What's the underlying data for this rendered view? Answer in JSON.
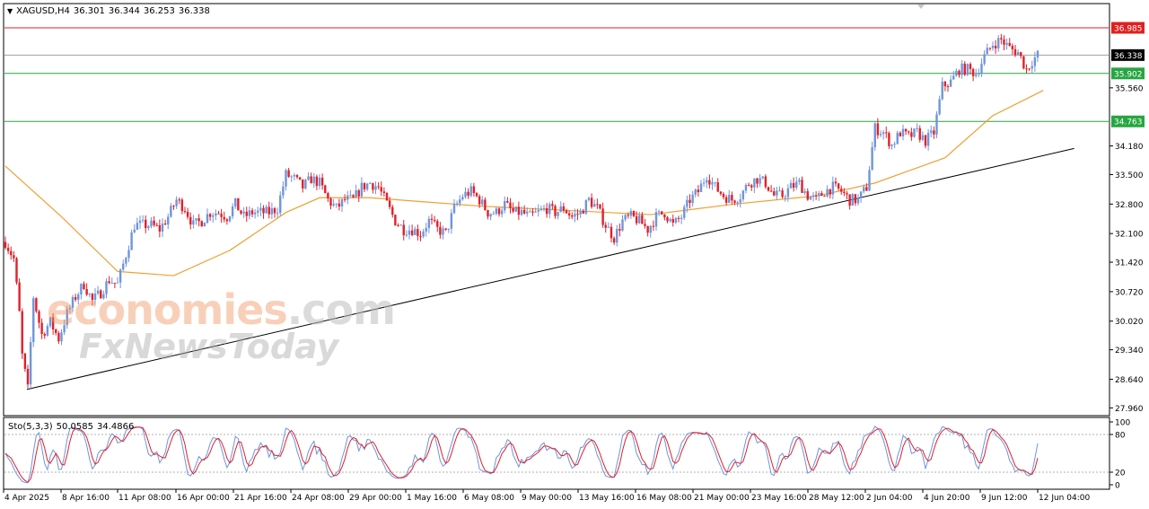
{
  "header": {
    "symbol": "XAGUSD,H4",
    "open": "36.301",
    "high": "36.344",
    "low": "36.253",
    "close": "36.338"
  },
  "watermark": {
    "part1": "economies",
    "part2": ".com",
    "part3": "FxNewsToday"
  },
  "colors": {
    "bull": "#6f95db",
    "bear": "#e0202a",
    "ma": "#f0a030",
    "trendline": "#000000",
    "resistance": "#e02020",
    "support": "#26a640",
    "sto_main": "#6f95db",
    "sto_signal": "#e0202a"
  },
  "chart_data": {
    "type": "candlestick",
    "title": "XAGUSD,H4",
    "y_ticks": [
      "35.560",
      "34.180",
      "33.500",
      "32.800",
      "32.100",
      "31.420",
      "30.720",
      "30.020",
      "29.340",
      "28.640",
      "27.960"
    ],
    "ylim": [
      27.96,
      37.2
    ],
    "x_ticks": [
      "4 Apr 2025",
      "8 Apr 16:00",
      "11 Apr 08:00",
      "16 Apr 00:00",
      "21 Apr 16:00",
      "24 Apr 08:00",
      "29 Apr 00:00",
      "1 May 16:00",
      "6 May 08:00",
      "9 May 00:00",
      "13 May 16:00",
      "16 May 08:00",
      "21 May 00:00",
      "23 May 16:00",
      "28 May 12:00",
      "2 Jun 04:00",
      "4 Jun 20:00",
      "9 Jun 12:00",
      "12 Jun 04:00"
    ],
    "levels": [
      {
        "name": "resistance",
        "value": 36.985,
        "label": "36.985"
      },
      {
        "name": "current-price",
        "value": 36.338,
        "label": "36.338"
      },
      {
        "name": "support-1",
        "value": 35.902,
        "label": "35.902"
      },
      {
        "name": "support-2",
        "value": 34.763,
        "label": "34.763"
      }
    ],
    "trendline": {
      "from": [
        0,
        28.4
      ],
      "to": [
        381,
        34.12
      ]
    },
    "price_path": [
      [
        0,
        31.9
      ],
      [
        3,
        31.5
      ],
      [
        5,
        30.2
      ],
      [
        6,
        29.2
      ],
      [
        8,
        28.4
      ],
      [
        10,
        30.6
      ],
      [
        13,
        29.7
      ],
      [
        16,
        30.0
      ],
      [
        19,
        29.6
      ],
      [
        22,
        30.2
      ],
      [
        25,
        30.6
      ],
      [
        28,
        30.9
      ],
      [
        31,
        30.5
      ],
      [
        34,
        30.7
      ],
      [
        37,
        31.0
      ],
      [
        40,
        30.9
      ],
      [
        43,
        31.6
      ],
      [
        46,
        32.3
      ],
      [
        49,
        32.3
      ],
      [
        52,
        32.3
      ],
      [
        55,
        32.2
      ],
      [
        58,
        32.5
      ],
      [
        61,
        32.9
      ],
      [
        64,
        32.7
      ],
      [
        67,
        32.3
      ],
      [
        70,
        32.4
      ],
      [
        73,
        32.6
      ],
      [
        76,
        32.6
      ],
      [
        79,
        32.5
      ],
      [
        82,
        32.8
      ],
      [
        85,
        32.5
      ],
      [
        88,
        32.6
      ],
      [
        91,
        32.6
      ],
      [
        94,
        32.6
      ],
      [
        97,
        32.7
      ],
      [
        100,
        33.5
      ],
      [
        103,
        33.4
      ],
      [
        106,
        33.2
      ],
      [
        109,
        33.4
      ],
      [
        112,
        33.3
      ],
      [
        115,
        32.9
      ],
      [
        118,
        32.7
      ],
      [
        121,
        32.9
      ],
      [
        124,
        32.9
      ],
      [
        127,
        33.2
      ],
      [
        130,
        33.3
      ],
      [
        133,
        33.2
      ],
      [
        136,
        32.8
      ],
      [
        139,
        32.4
      ],
      [
        142,
        32.2
      ],
      [
        145,
        32.2
      ],
      [
        148,
        32.1
      ],
      [
        151,
        32.4
      ],
      [
        154,
        32.2
      ],
      [
        157,
        32.1
      ],
      [
        160,
        32.7
      ],
      [
        163,
        33.0
      ],
      [
        166,
        33.1
      ],
      [
        169,
        32.9
      ],
      [
        172,
        32.6
      ],
      [
        175,
        32.6
      ],
      [
        178,
        32.8
      ],
      [
        181,
        32.6
      ],
      [
        184,
        32.6
      ],
      [
        187,
        32.5
      ],
      [
        190,
        32.6
      ],
      [
        193,
        32.7
      ],
      [
        196,
        32.6
      ],
      [
        199,
        32.7
      ],
      [
        202,
        32.5
      ],
      [
        205,
        32.6
      ],
      [
        208,
        32.9
      ],
      [
        211,
        32.7
      ],
      [
        214,
        32.3
      ],
      [
        217,
        32.0
      ],
      [
        220,
        32.4
      ],
      [
        223,
        32.5
      ],
      [
        226,
        32.4
      ],
      [
        229,
        32.2
      ],
      [
        232,
        32.5
      ],
      [
        235,
        32.6
      ],
      [
        238,
        32.3
      ],
      [
        241,
        32.5
      ],
      [
        244,
        32.9
      ],
      [
        247,
        33.1
      ],
      [
        250,
        33.5
      ],
      [
        253,
        33.2
      ],
      [
        256,
        33.0
      ],
      [
        259,
        32.9
      ],
      [
        262,
        33.0
      ],
      [
        265,
        33.3
      ],
      [
        268,
        33.4
      ],
      [
        271,
        33.3
      ],
      [
        274,
        33.0
      ],
      [
        277,
        33.0
      ],
      [
        280,
        33.2
      ],
      [
        283,
        33.3
      ],
      [
        286,
        33.0
      ],
      [
        289,
        32.9
      ],
      [
        292,
        33.1
      ],
      [
        295,
        33.2
      ],
      [
        298,
        33.1
      ],
      [
        301,
        32.9
      ],
      [
        304,
        32.9
      ],
      [
        307,
        33.2
      ],
      [
        310,
        34.6
      ],
      [
        313,
        34.5
      ],
      [
        316,
        34.2
      ],
      [
        319,
        34.5
      ],
      [
        322,
        34.4
      ],
      [
        325,
        34.5
      ],
      [
        328,
        34.3
      ],
      [
        331,
        34.5
      ],
      [
        334,
        35.6
      ],
      [
        337,
        35.7
      ],
      [
        340,
        36.0
      ],
      [
        343,
        36.0
      ],
      [
        346,
        35.9
      ],
      [
        349,
        36.3
      ],
      [
        352,
        36.6
      ],
      [
        355,
        36.7
      ],
      [
        358,
        36.5
      ],
      [
        361,
        36.4
      ],
      [
        364,
        36.0
      ],
      [
        366,
        36.2
      ],
      [
        368,
        36.338
      ]
    ],
    "moving_average": {
      "type": "line",
      "points": [
        [
          0,
          33.7
        ],
        [
          20,
          32.5
        ],
        [
          40,
          31.2
        ],
        [
          60,
          31.1
        ],
        [
          80,
          31.7
        ],
        [
          100,
          32.6
        ],
        [
          112,
          32.95
        ],
        [
          130,
          32.95
        ],
        [
          150,
          32.85
        ],
        [
          170,
          32.75
        ],
        [
          200,
          32.65
        ],
        [
          230,
          32.55
        ],
        [
          260,
          32.8
        ],
        [
          290,
          33.0
        ],
        [
          310,
          33.3
        ],
        [
          335,
          33.9
        ],
        [
          352,
          34.9
        ],
        [
          370,
          35.5
        ]
      ]
    },
    "stochastic": {
      "label": "Sto(5,3,3)",
      "main_value": "50.0585",
      "signal_value": "34.4866",
      "y_ticks": [
        "100",
        "80",
        "20",
        "0"
      ],
      "levels": [
        80,
        20
      ]
    }
  }
}
